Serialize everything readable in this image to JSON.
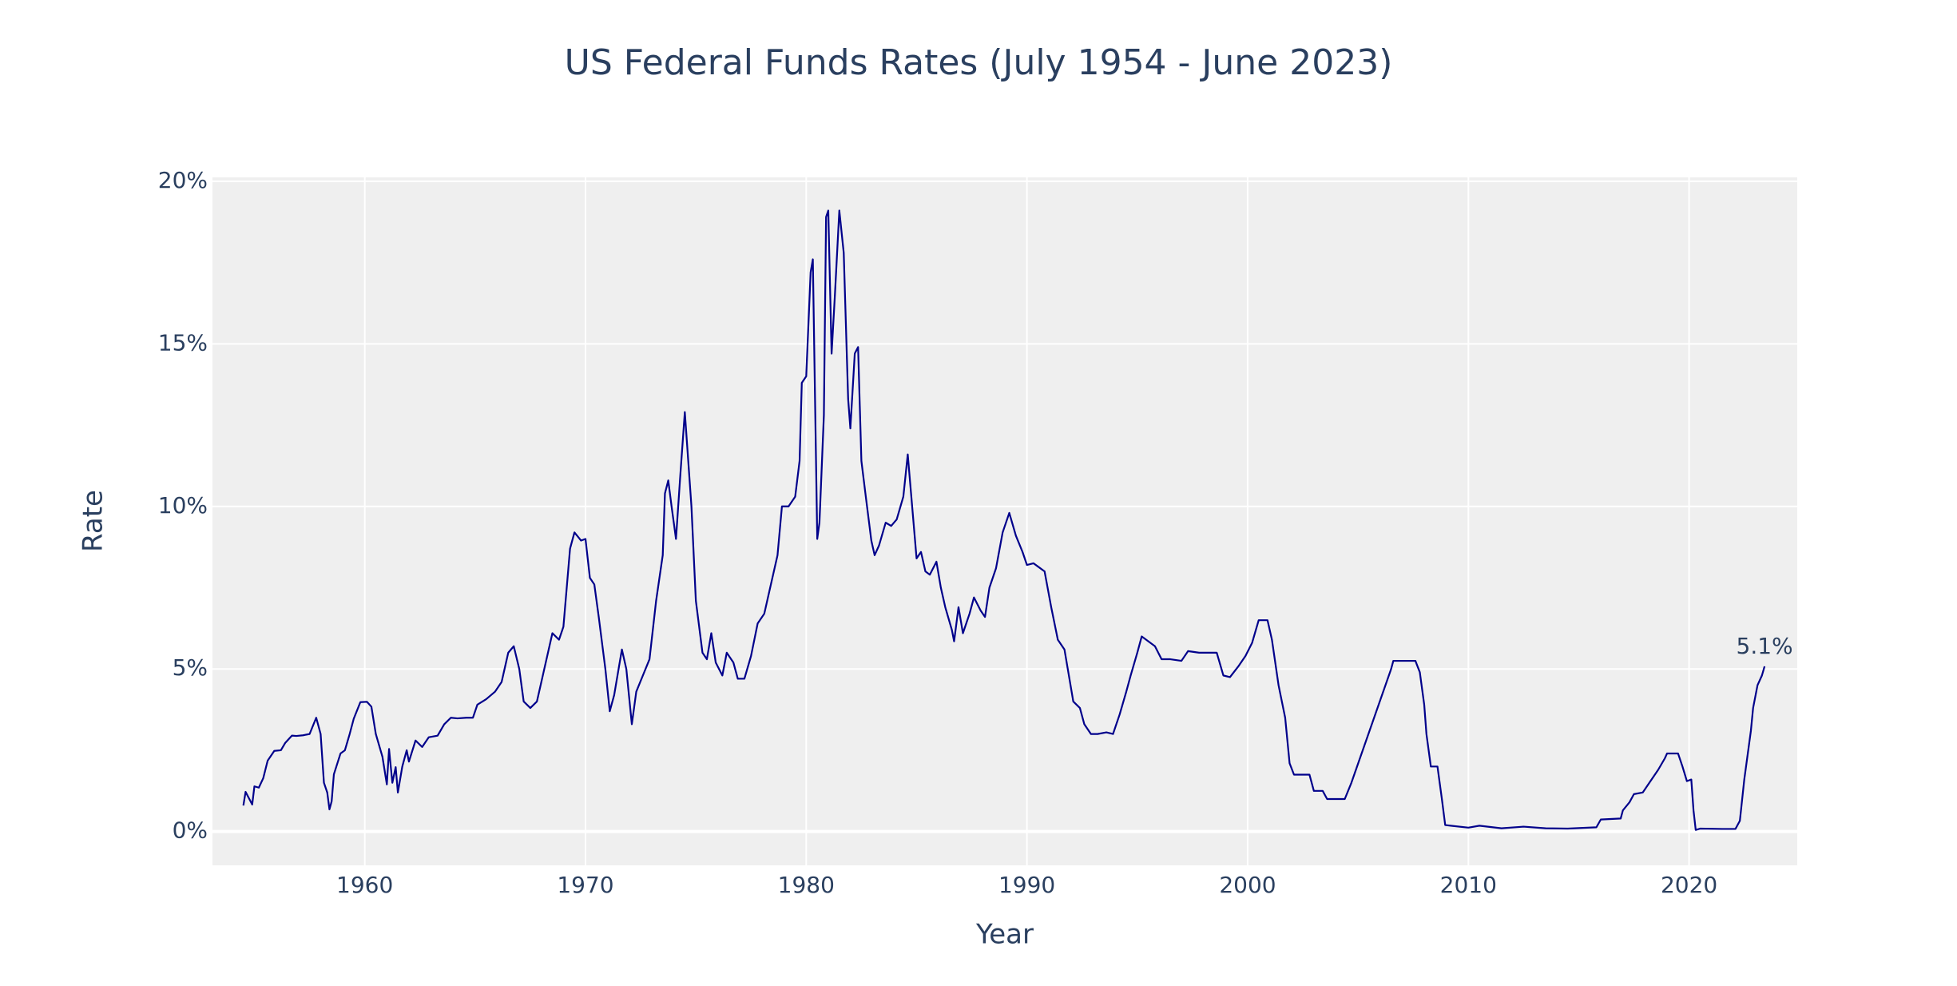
{
  "chart_data": {
    "type": "line",
    "title": "US Federal Funds Rates (July 1954 - June 2023)",
    "x_label": "Year",
    "y_label": "Rate",
    "color": "#00008b",
    "grid": true,
    "xlim": [
      1953.1,
      2024.9
    ],
    "xticks": [
      1960,
      1970,
      1980,
      1990,
      2000,
      2010,
      2020
    ],
    "ylim": [
      -1.04,
      20.12
    ],
    "yticks": [
      {
        "value": 0,
        "label": "0%"
      },
      {
        "value": 5,
        "label": "5%"
      },
      {
        "value": 10,
        "label": "10%"
      },
      {
        "value": 15,
        "label": "15%"
      },
      {
        "value": 20,
        "label": "20%"
      }
    ],
    "x": [
      1954.5,
      1954.6,
      1954.9,
      1955.0,
      1955.2,
      1955.4,
      1955.6,
      1955.9,
      1956.2,
      1956.4,
      1956.7,
      1956.9,
      1957.2,
      1957.5,
      1957.8,
      1958.0,
      1958.15,
      1958.3,
      1958.4,
      1958.5,
      1958.6,
      1958.9,
      1959.1,
      1959.3,
      1959.5,
      1959.8,
      1960.1,
      1960.3,
      1960.5,
      1960.8,
      1961.0,
      1961.1,
      1961.25,
      1961.4,
      1961.5,
      1961.7,
      1961.9,
      1962.0,
      1962.3,
      1962.6,
      1962.9,
      1963.3,
      1963.6,
      1963.9,
      1964.2,
      1964.6,
      1964.9,
      1965.1,
      1965.5,
      1965.9,
      1966.2,
      1966.5,
      1966.75,
      1967.0,
      1967.2,
      1967.5,
      1967.8,
      1968.0,
      1968.3,
      1968.5,
      1968.8,
      1969.0,
      1969.3,
      1969.5,
      1969.8,
      1970.0,
      1970.2,
      1970.4,
      1970.6,
      1970.9,
      1971.1,
      1971.3,
      1971.5,
      1971.65,
      1971.85,
      1972.1,
      1972.3,
      1972.6,
      1972.9,
      1973.2,
      1973.5,
      1973.6,
      1973.75,
      1973.9,
      1974.1,
      1974.3,
      1974.5,
      1974.8,
      1975.0,
      1975.3,
      1975.5,
      1975.7,
      1975.9,
      1976.2,
      1976.4,
      1976.7,
      1976.9,
      1977.2,
      1977.5,
      1977.8,
      1978.1,
      1978.3,
      1978.7,
      1978.9,
      1979.2,
      1979.5,
      1979.7,
      1979.8,
      1980.0,
      1980.2,
      1980.3,
      1980.5,
      1980.6,
      1980.8,
      1980.9,
      1981.0,
      1981.15,
      1981.3,
      1981.5,
      1981.7,
      1981.9,
      1982.0,
      1982.2,
      1982.35,
      1982.5,
      1982.7,
      1982.95,
      1983.1,
      1983.3,
      1983.6,
      1983.85,
      1984.1,
      1984.4,
      1984.6,
      1984.8,
      1985.0,
      1985.2,
      1985.4,
      1985.6,
      1985.9,
      1986.1,
      1986.3,
      1986.6,
      1986.7,
      1986.9,
      1987.1,
      1987.4,
      1987.6,
      1987.9,
      1988.1,
      1988.3,
      1988.6,
      1988.9,
      1989.2,
      1989.5,
      1989.8,
      1990.0,
      1990.3,
      1990.5,
      1990.8,
      1991.1,
      1991.4,
      1991.7,
      1991.9,
      1992.1,
      1992.4,
      1992.6,
      1992.9,
      1993.2,
      1993.6,
      1993.9,
      1994.2,
      1994.5,
      1994.7,
      1995.0,
      1995.2,
      1995.5,
      1995.8,
      1996.1,
      1996.5,
      1997.0,
      1997.3,
      1997.8,
      1998.2,
      1998.6,
      1998.9,
      1999.2,
      1999.6,
      1999.9,
      2000.2,
      2000.5,
      2000.9,
      2001.1,
      2001.4,
      2001.7,
      2001.9,
      2002.1,
      2002.8,
      2003.0,
      2003.4,
      2003.6,
      2004.4,
      2004.7,
      2006.5,
      2006.6,
      2007.6,
      2007.8,
      2008.0,
      2008.1,
      2008.3,
      2008.6,
      2008.8,
      2008.95,
      2009.2,
      2010.0,
      2010.5,
      2011.5,
      2012.5,
      2013.5,
      2014.5,
      2015.8,
      2016.0,
      2016.9,
      2017.0,
      2017.3,
      2017.5,
      2017.9,
      2018.2,
      2018.6,
      2018.9,
      2019.0,
      2019.5,
      2019.7,
      2019.9,
      2020.1,
      2020.2,
      2020.3,
      2020.5,
      2021.5,
      2022.1,
      2022.3,
      2022.5,
      2022.7,
      2022.8,
      2022.9,
      2023.1,
      2023.3,
      2023.42
    ],
    "values": [
      0.8,
      1.22,
      0.83,
      1.39,
      1.35,
      1.64,
      2.18,
      2.48,
      2.5,
      2.73,
      2.95,
      2.94,
      2.96,
      3.0,
      3.5,
      3.0,
      1.5,
      1.2,
      0.68,
      0.93,
      1.76,
      2.4,
      2.5,
      2.96,
      3.47,
      3.98,
      3.99,
      3.84,
      3.0,
      2.3,
      1.45,
      2.54,
      1.5,
      1.98,
      1.2,
      2.0,
      2.5,
      2.15,
      2.8,
      2.6,
      2.9,
      2.95,
      3.3,
      3.5,
      3.48,
      3.5,
      3.5,
      3.9,
      4.07,
      4.3,
      4.6,
      5.5,
      5.7,
      5.0,
      4.0,
      3.8,
      4.0,
      4.6,
      5.5,
      6.1,
      5.9,
      6.3,
      8.7,
      9.2,
      8.95,
      9.0,
      7.8,
      7.6,
      6.6,
      5.0,
      3.7,
      4.2,
      5.0,
      5.6,
      5.0,
      3.3,
      4.3,
      4.8,
      5.3,
      7.1,
      8.5,
      10.4,
      10.8,
      10.0,
      9.0,
      11.0,
      12.9,
      10.0,
      7.1,
      5.5,
      5.3,
      6.1,
      5.2,
      4.8,
      5.5,
      5.2,
      4.7,
      4.7,
      5.4,
      6.4,
      6.7,
      7.3,
      8.5,
      10.0,
      10.0,
      10.3,
      11.4,
      13.8,
      14.0,
      17.2,
      17.6,
      9.0,
      9.5,
      12.8,
      18.9,
      19.1,
      14.7,
      16.5,
      19.1,
      17.8,
      13.3,
      12.4,
      14.7,
      14.9,
      11.4,
      10.3,
      8.95,
      8.5,
      8.8,
      9.5,
      9.4,
      9.6,
      10.3,
      11.6,
      10.0,
      8.4,
      8.6,
      8.0,
      7.9,
      8.3,
      7.5,
      6.9,
      6.2,
      5.85,
      6.9,
      6.1,
      6.7,
      7.2,
      6.8,
      6.6,
      7.5,
      8.1,
      9.2,
      9.8,
      9.1,
      8.6,
      8.2,
      8.25,
      8.15,
      8.0,
      6.9,
      5.9,
      5.6,
      4.8,
      4.0,
      3.8,
      3.3,
      3.0,
      3.0,
      3.05,
      3.0,
      3.6,
      4.3,
      4.8,
      5.5,
      6.0,
      5.85,
      5.7,
      5.3,
      5.3,
      5.25,
      5.55,
      5.5,
      5.5,
      5.5,
      4.8,
      4.75,
      5.1,
      5.4,
      5.8,
      6.5,
      6.5,
      5.9,
      4.5,
      3.5,
      2.1,
      1.75,
      1.75,
      1.25,
      1.25,
      1.0,
      1.0,
      1.5,
      5.0,
      5.25,
      5.25,
      4.9,
      3.9,
      3.0,
      2.0,
      2.0,
      1.0,
      0.2,
      0.18,
      0.12,
      0.18,
      0.1,
      0.15,
      0.1,
      0.09,
      0.13,
      0.37,
      0.4,
      0.65,
      0.9,
      1.15,
      1.2,
      1.5,
      1.9,
      2.25,
      2.4,
      2.4,
      2.0,
      1.55,
      1.6,
      0.65,
      0.05,
      0.09,
      0.08,
      0.08,
      0.33,
      1.6,
      2.6,
      3.1,
      3.8,
      4.5,
      4.8,
      5.08
    ],
    "annotation": {
      "text": "5.1%",
      "x": 2023.42,
      "y": 5.08
    }
  }
}
